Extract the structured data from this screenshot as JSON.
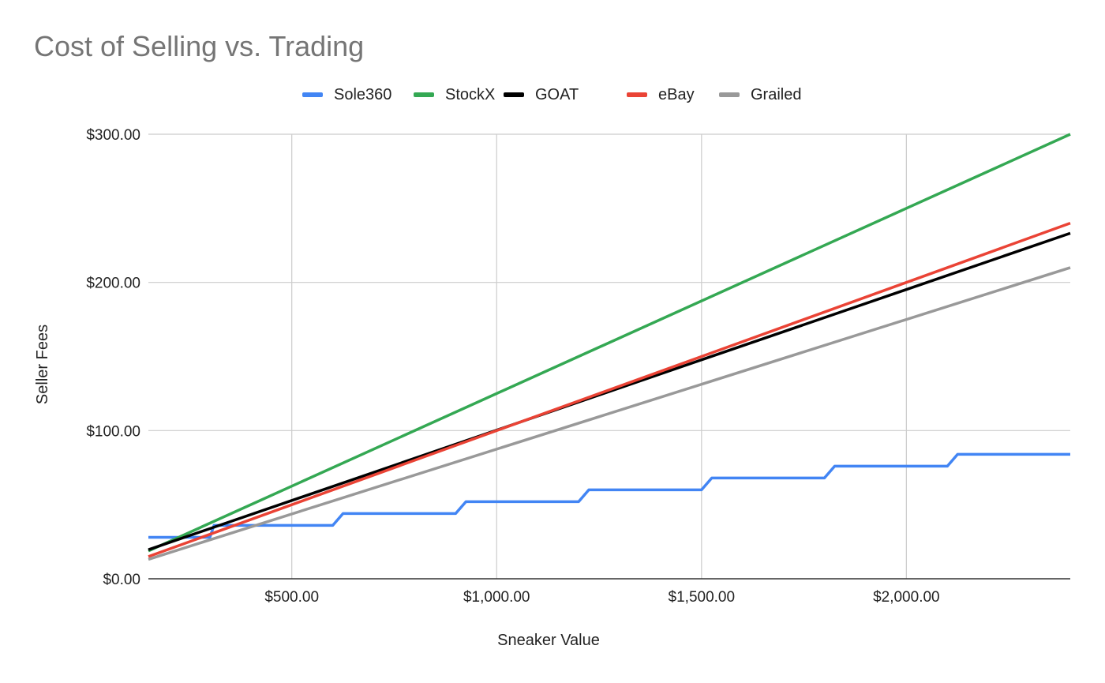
{
  "chart_data": {
    "type": "line",
    "title": "Cost of Selling vs. Trading",
    "xlabel": "Sneaker Value",
    "ylabel": "Seller Fees",
    "xlim": [
      150,
      2400
    ],
    "ylim": [
      0,
      300
    ],
    "x_ticks": [
      500,
      1000,
      1500,
      2000
    ],
    "x_tick_labels": [
      "$500.00",
      "$1,000.00",
      "$1,500.00",
      "$2,000.00"
    ],
    "y_ticks": [
      0,
      100,
      200,
      300
    ],
    "y_tick_labels": [
      "$0.00",
      "$100.00",
      "$200.00",
      "$300.00"
    ],
    "grid": true,
    "legend_position": "top",
    "series": [
      {
        "name": "Sole360",
        "color": "#4285f4",
        "x": [
          150,
          300,
          310,
          600,
          625,
          900,
          925,
          1200,
          1225,
          1500,
          1525,
          1800,
          1825,
          2100,
          2125,
          2400
        ],
        "y": [
          28,
          28,
          36,
          36,
          44,
          44,
          52,
          52,
          60,
          60,
          68,
          68,
          76,
          76,
          84,
          84
        ]
      },
      {
        "name": "StockX",
        "color": "#34a853",
        "x": [
          150,
          2400
        ],
        "y": [
          18.75,
          300
        ]
      },
      {
        "name": "GOAT",
        "color": "#000000",
        "x": [
          150,
          2400
        ],
        "y": [
          19.6,
          233.2
        ]
      },
      {
        "name": "eBay",
        "color": "#ea4335",
        "x": [
          150,
          2400
        ],
        "y": [
          15,
          240
        ]
      },
      {
        "name": "Grailed",
        "color": "#999999",
        "x": [
          150,
          2400
        ],
        "y": [
          13.1,
          210
        ]
      }
    ]
  }
}
